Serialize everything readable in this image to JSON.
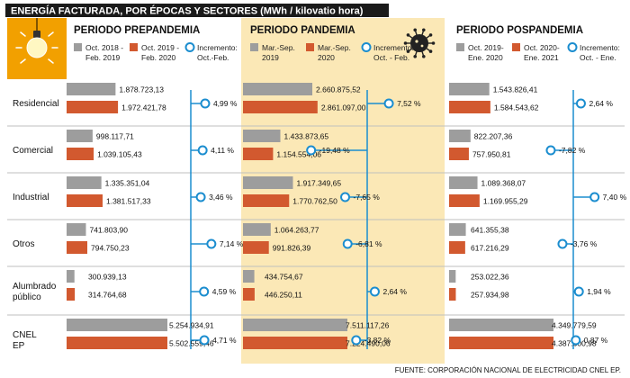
{
  "header": {
    "title": "ENERGÍA FACTURADA, POR ÉPOCAS Y SECTORES (MWh / kilovatio hora)"
  },
  "footer": {
    "source": "FUENTE: CORPORACIÓN NACIONAL DE ELECTRICIDAD CNEL EP."
  },
  "colors": {
    "gray": "#9d9d9d",
    "orange": "#d2592f",
    "blue": "#1b8dcf",
    "highlight": "#fbe8b6",
    "title_bg": "#1a1a1a",
    "accent": "#f2a000",
    "separator": "#bfbfbf"
  },
  "chart_data": {
    "type": "bar",
    "unit": "MWh",
    "title": "ENERGÍA FACTURADA, POR ÉPOCAS Y SECTORES (MWh / kilovatio hora)",
    "categories": [
      "Residencial",
      "Comercial",
      "Industrial",
      "Otros",
      "Alumbrado público",
      "CNEL EP"
    ],
    "category_lines": [
      [
        "Residencial"
      ],
      [
        "Comercial"
      ],
      [
        "Industrial"
      ],
      [
        "Otros"
      ],
      [
        "Alumbrado",
        "público"
      ],
      [
        "CNEL",
        "EP"
      ]
    ],
    "periods": [
      {
        "name": "PERIODO PREPANDEMIA",
        "highlight": false,
        "legend": [
          [
            "Oct. 2018 -",
            "Feb. 2019"
          ],
          [
            "Oct. 2019 -",
            "Feb. 2020"
          ],
          [
            "Incremento:",
            "Oct.-Feb."
          ]
        ],
        "series": [
          {
            "name": "Oct. 2018 - Feb. 2019",
            "values": [
              1878723.13,
              998117.71,
              1335351.04,
              741803.9,
              300939.13,
              5254934.91
            ],
            "labels": [
              "1.878.723,13",
              "998.117,71",
              "1.335.351,04",
              "741.803,90",
              "300.939,13",
              "5.254.934,91"
            ]
          },
          {
            "name": "Oct. 2019 - Feb. 2020",
            "values": [
              1972421.78,
              1039105.43,
              1381517.33,
              794750.23,
              314764.68,
              5502559.46
            ],
            "labels": [
              "1.972.421,78",
              "1.039.105,43",
              "1.381.517,33",
              "794.750,23",
              "314.764,68",
              "5.502.559,46"
            ]
          }
        ],
        "increments": [
          4.99,
          4.11,
          3.46,
          7.14,
          4.59,
          4.71
        ],
        "increment_labels": [
          "4,99 %",
          "4,11 %",
          "3,46 %",
          "7,14 %",
          "4,59 %",
          "4,71 %"
        ]
      },
      {
        "name": "PERIODO PANDEMIA",
        "highlight": true,
        "legend": [
          [
            "Mar.-Sep.",
            "2019"
          ],
          [
            "Mar.-Sep.",
            "2020"
          ],
          [
            "Incremento:",
            "Oct. - Feb."
          ]
        ],
        "series": [
          {
            "name": "Mar.-Sep. 2019",
            "values": [
              2660875.52,
              1433873.65,
              1917349.65,
              1064263.77,
              434754.67,
              7511117.26
            ],
            "labels": [
              "2.660.875,52",
              "1.433.873,65",
              "1.917.349,65",
              "1.064.263,77",
              "434.754,67",
              "7.511.117,26"
            ]
          },
          {
            "name": "Mar.-Sep. 2020",
            "values": [
              2861097.0,
              1154554.06,
              1770762.5,
              991826.39,
              446250.11,
              7224490.06
            ],
            "labels": [
              "2.861.097,00",
              "1.154.554,06",
              "1.770.762,50",
              "991.826,39",
              "446.250,11",
              "7.224.490,06"
            ]
          }
        ],
        "increments": [
          7.52,
          -19.48,
          -7.65,
          -6.81,
          2.64,
          -3.82
        ],
        "increment_labels": [
          "7,52 %",
          "-19,48 %",
          "-7,65 %",
          "-6,81 %",
          "2,64 %",
          "-3,82 %"
        ]
      },
      {
        "name": "PERIODO POSPANDEMIA",
        "highlight": false,
        "legend": [
          [
            "Oct. 2019-",
            "Ene. 2020"
          ],
          [
            "Oct. 2020-",
            "Ene. 2021"
          ],
          [
            "Incremento:",
            "Oct. - Ene."
          ]
        ],
        "series": [
          {
            "name": "Oct. 2019 - Ene. 2020",
            "values": [
              1543826.41,
              822207.36,
              1089368.07,
              641355.38,
              253022.36,
              4349779.59
            ],
            "labels": [
              "1.543.826,41",
              "822.207,36",
              "1.089.368,07",
              "641.355,38",
              "253.022,36",
              "4.349.779,59"
            ]
          },
          {
            "name": "Oct. 2020 - Ene. 2021",
            "values": [
              1584543.62,
              757950.81,
              1169955.29,
              617216.29,
              257934.98,
              4387600.98
            ],
            "labels": [
              "1.584.543,62",
              "757.950,81",
              "1.169.955,29",
              "617.216,29",
              "257.934,98",
              "4.387.600,98"
            ]
          }
        ],
        "increments": [
          2.64,
          -7.82,
          7.4,
          -3.76,
          1.94,
          0.87
        ],
        "increment_labels": [
          "2,64 %",
          "-7,82 %",
          "7,40 %",
          "-3,76 %",
          "1,94 %",
          "0,87 %"
        ]
      }
    ],
    "xlabel": "",
    "ylabel": ""
  }
}
